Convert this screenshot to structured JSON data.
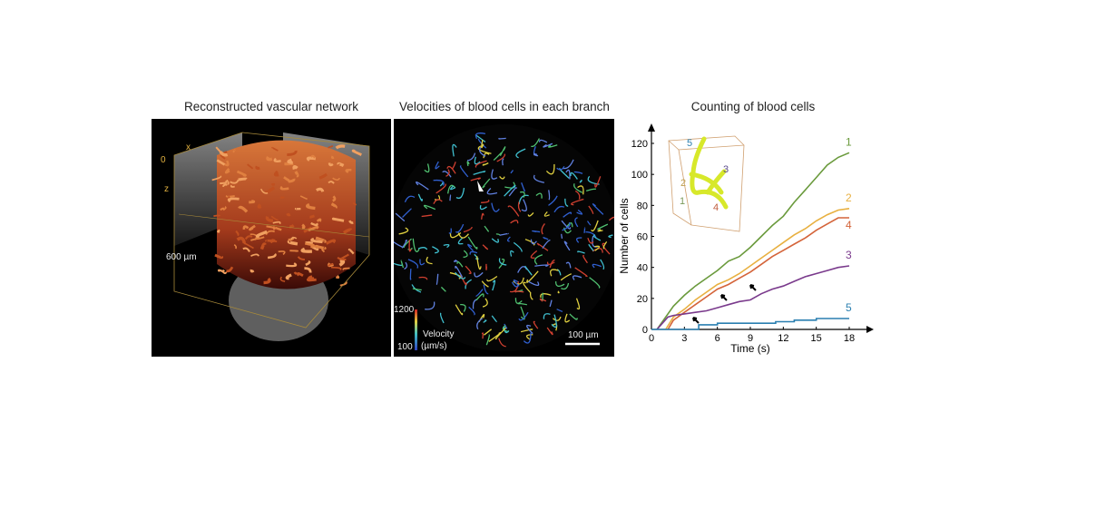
{
  "panels": {
    "vascular": {
      "title": "Reconstructed vascular network",
      "axis_x": "x",
      "axis_z": "z",
      "origin": "0",
      "depth_label": "600 µm"
    },
    "velocity": {
      "title": "Velocities of blood cells in each branch",
      "colorbar_max": "1200",
      "colorbar_min": "100",
      "colorbar_label": "Velocity",
      "colorbar_unit": "(µm/s)",
      "scalebar": "100 µm"
    }
  },
  "chart_data": {
    "type": "line",
    "title": "Counting of blood cells",
    "xlabel": "Time (s)",
    "ylabel": "Number of cells",
    "xlim": [
      0,
      18
    ],
    "ylim": [
      0,
      120
    ],
    "xticks": [
      "0",
      "3",
      "6",
      "9",
      "12",
      "15",
      "18"
    ],
    "yticks": [
      "0",
      "20",
      "40",
      "60",
      "80",
      "100",
      "120"
    ],
    "series": [
      {
        "name": "1",
        "color": "#6a9a3c",
        "x": [
          0.5,
          1,
          2,
          3,
          4,
          5,
          6,
          7,
          8,
          9,
          10,
          11,
          12,
          13,
          14,
          15,
          16,
          17,
          18
        ],
        "y": [
          0,
          5,
          15,
          22,
          28,
          33,
          38,
          44,
          47,
          53,
          60,
          67,
          73,
          82,
          90,
          98,
          106,
          111,
          114
        ]
      },
      {
        "name": "2",
        "color": "#e8b040",
        "x": [
          1.3,
          2,
          3,
          4,
          5,
          6,
          7,
          8,
          9,
          10,
          11,
          12,
          13,
          14,
          15,
          16,
          17,
          18
        ],
        "y": [
          0,
          8,
          13,
          19,
          24,
          29,
          32,
          36,
          41,
          46,
          51,
          56,
          61,
          65,
          70,
          74,
          77,
          78
        ]
      },
      {
        "name": "4",
        "color": "#d4643a",
        "x": [
          1.5,
          2,
          3,
          4,
          5,
          6,
          7,
          8,
          9,
          10,
          11,
          12,
          13,
          14,
          15,
          16,
          17,
          18
        ],
        "y": [
          0,
          6,
          11,
          16,
          21,
          26,
          29,
          33,
          37,
          42,
          47,
          51,
          55,
          59,
          64,
          68,
          72,
          72
        ]
      },
      {
        "name": "3",
        "color": "#7a3a8c",
        "x": [
          0.5,
          1,
          1.5,
          2,
          3,
          4,
          5,
          6,
          7,
          8,
          9,
          10,
          11,
          12,
          13,
          14,
          15,
          16,
          17,
          18
        ],
        "y": [
          0,
          4,
          8,
          9,
          10,
          11,
          12,
          14,
          16,
          18,
          19,
          23,
          26,
          28,
          31,
          34,
          36,
          38,
          40,
          41
        ]
      },
      {
        "name": "5",
        "color": "#2a7fb0",
        "x": [
          0,
          4.3,
          4.3,
          6,
          6,
          11.3,
          11.3,
          13,
          13,
          15,
          15,
          18
        ],
        "y": [
          0,
          0,
          3,
          3,
          4,
          4,
          5,
          5,
          6,
          6,
          7,
          7
        ]
      }
    ],
    "inset_labels": [
      "5",
      "2",
      "1",
      "3",
      "4"
    ]
  }
}
